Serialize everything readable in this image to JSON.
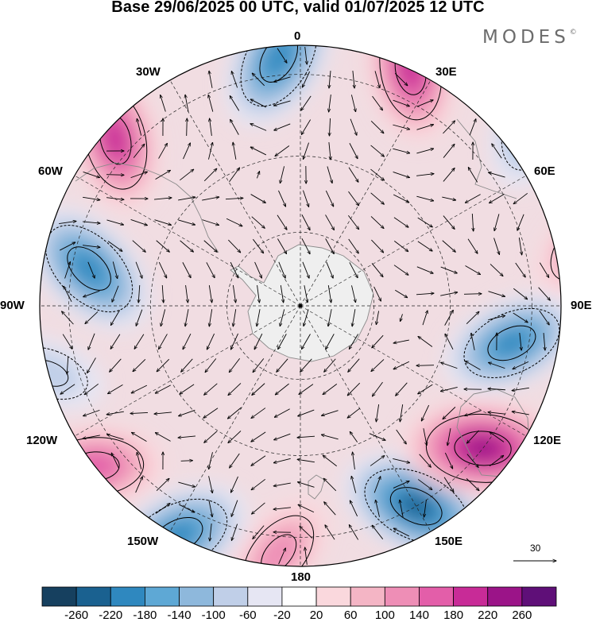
{
  "title": "Base 29/06/2025 00 UTC, valid 01/07/2025 12 UTC",
  "brand": {
    "name": "MODES",
    "mark": "©"
  },
  "longitude_labels": {
    "lon_0": "0",
    "lon_30e": "30E",
    "lon_60e": "60E",
    "lon_90e": "90E",
    "lon_120e": "120E",
    "lon_150e": "150E",
    "lon_180": "180",
    "lon_150w": "150W",
    "lon_120w": "120W",
    "lon_90w": "90W",
    "lon_60w": "60W",
    "lon_30w": "30W"
  },
  "reference_vector": {
    "value": "30"
  },
  "colorbar": {
    "colors": [
      "#16405f",
      "#1a6190",
      "#2f88bf",
      "#5ea8d5",
      "#8eb8dc",
      "#c0cfe8",
      "#e6e6f3",
      "#ffffff",
      "#fad8dd",
      "#f4b5c5",
      "#ee8eb6",
      "#e35ea9",
      "#c82b97",
      "#9b1488",
      "#5f0f78"
    ],
    "labels": [
      "-260",
      "-220",
      "-180",
      "-140",
      "-100",
      "-60",
      "-20",
      "20",
      "60",
      "100",
      "140",
      "180",
      "220",
      "260"
    ]
  },
  "anomalies": [
    {
      "lat": -42,
      "lon": 5,
      "value": -220,
      "label": "blue, south atlantic near 0E"
    },
    {
      "lat": -40,
      "lon": -25,
      "value": 200,
      "label": "pink, south atlantic 25W"
    },
    {
      "lat": -42,
      "lon": 48,
      "value": 200,
      "label": "pink, indian ocean 48E"
    },
    {
      "lat": -48,
      "lon": 80,
      "value": -220,
      "label": "blue, indian ocean 80E"
    },
    {
      "lat": -40,
      "lon": 105,
      "value": -100,
      "label": "blue, 105E"
    },
    {
      "lat": -40,
      "lon": 128,
      "value": 180,
      "label": "pink, australia 128E"
    },
    {
      "lat": -40,
      "lon": 152,
      "value": -220,
      "label": "blue, tasman 152E"
    },
    {
      "lat": -42,
      "lon": 175,
      "value": 140,
      "label": "pink, 175E"
    },
    {
      "lat": -45,
      "lon": -150,
      "value": -240,
      "label": "blue, pacific 150W"
    },
    {
      "lat": -45,
      "lon": -128,
      "value": 260,
      "label": "purple, pacific 128W"
    },
    {
      "lat": -48,
      "lon": -100,
      "value": -200,
      "label": "blue, pacific 100W"
    },
    {
      "lat": -35,
      "lon": -78,
      "value": 120,
      "label": "pink, 78W"
    },
    {
      "lat": -35,
      "lon": -52,
      "value": -140,
      "label": "blue, 52W"
    }
  ]
}
